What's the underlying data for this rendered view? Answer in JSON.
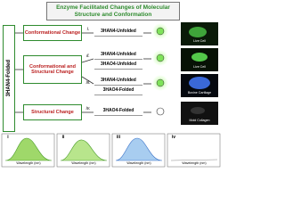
{
  "title": "Enzyme Facilitated Changes of Molecular Structure and Conformation",
  "start": "3HAN4-Folded",
  "changes": [
    "Conformational Change",
    "Conformational and Structural Change",
    "Structural Change"
  ],
  "numerals": [
    "i.",
    "ii.",
    "iii.",
    "iv."
  ],
  "results": [
    "3HAN4-Unfolded",
    "3HAN4-Unfolded",
    "3HAO4-Unfolded",
    "3HAN4-Unfolded",
    "3HAO4-Folded",
    "3HAO4-Folded"
  ],
  "images": [
    "Live Cell",
    "Live Cell",
    "Bovine Cartilage",
    "Mold Collagen"
  ],
  "plots": {
    "labels": [
      "i",
      "ii",
      "iii",
      "iv"
    ],
    "xlabel": "Wavelength (nm)"
  }
}
